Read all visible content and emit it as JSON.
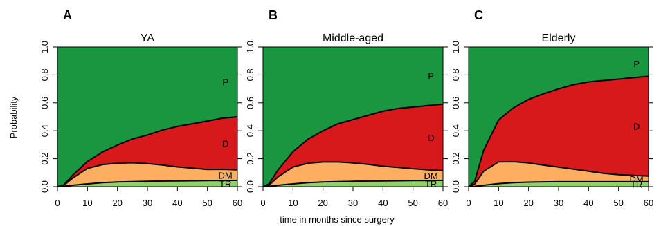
{
  "figure": {
    "ylabel": "Probability",
    "xlabel": "time in months since surgery"
  },
  "colors": {
    "TR": "#8fd16a",
    "DM": "#fdae61",
    "D": "#d7191c",
    "P": "#1a9641",
    "line": "#000000"
  },
  "chart_data": [
    {
      "type": "area",
      "panel": "A",
      "title": "YA",
      "xlim": [
        0,
        60
      ],
      "ylim": [
        0,
        1
      ],
      "x_ticks": [
        0,
        10,
        20,
        30,
        40,
        50,
        60
      ],
      "y_ticks": [
        "0.0",
        "0.2",
        "0.4",
        "0.6",
        "0.8",
        "1.0"
      ],
      "stacked": true,
      "x": [
        0,
        2,
        5,
        10,
        15,
        20,
        25,
        30,
        35,
        40,
        45,
        50,
        55,
        60
      ],
      "series": [
        {
          "name": "TR",
          "values": [
            0,
            0.002,
            0.01,
            0.02,
            0.028,
            0.033,
            0.036,
            0.038,
            0.04,
            0.041,
            0.042,
            0.043,
            0.044,
            0.045
          ]
        },
        {
          "name": "DM",
          "values": [
            0,
            0.005,
            0.05,
            0.11,
            0.13,
            0.135,
            0.135,
            0.127,
            0.115,
            0.1,
            0.09,
            0.08,
            0.08,
            0.075
          ]
        },
        {
          "name": "D",
          "values": [
            0,
            0.003,
            0.02,
            0.05,
            0.09,
            0.13,
            0.17,
            0.205,
            0.25,
            0.29,
            0.318,
            0.347,
            0.366,
            0.38
          ]
        },
        {
          "name": "P",
          "values": [
            1,
            0.99,
            0.92,
            0.82,
            0.752,
            0.702,
            0.659,
            0.63,
            0.595,
            0.569,
            0.55,
            0.53,
            0.51,
            0.5
          ]
        }
      ],
      "labels": [
        "TR",
        "DM",
        "D",
        "P"
      ]
    },
    {
      "type": "area",
      "panel": "B",
      "title": "Middle-aged",
      "xlim": [
        0,
        60
      ],
      "ylim": [
        0,
        1
      ],
      "x_ticks": [
        0,
        10,
        20,
        30,
        40,
        50,
        60
      ],
      "y_ticks": [
        "0.0",
        "0.2",
        "0.4",
        "0.6",
        "0.8",
        "1.0"
      ],
      "stacked": true,
      "x": [
        0,
        2,
        5,
        10,
        15,
        20,
        25,
        30,
        35,
        40,
        45,
        50,
        55,
        60
      ],
      "series": [
        {
          "name": "TR",
          "values": [
            0,
            0.002,
            0.01,
            0.02,
            0.028,
            0.033,
            0.036,
            0.038,
            0.04,
            0.041,
            0.042,
            0.043,
            0.044,
            0.045
          ]
        },
        {
          "name": "DM",
          "values": [
            0,
            0.008,
            0.06,
            0.12,
            0.14,
            0.143,
            0.14,
            0.132,
            0.12,
            0.105,
            0.095,
            0.085,
            0.076,
            0.07
          ]
        },
        {
          "name": "D",
          "values": [
            0,
            0.01,
            0.05,
            0.11,
            0.172,
            0.224,
            0.274,
            0.31,
            0.35,
            0.394,
            0.423,
            0.442,
            0.46,
            0.475
          ]
        },
        {
          "name": "P",
          "values": [
            1,
            0.98,
            0.88,
            0.75,
            0.66,
            0.6,
            0.55,
            0.52,
            0.49,
            0.46,
            0.44,
            0.43,
            0.42,
            0.41
          ]
        }
      ],
      "labels": [
        "TR",
        "DM",
        "D",
        "P"
      ]
    },
    {
      "type": "area",
      "panel": "C",
      "title": "Elderly",
      "xlim": [
        0,
        60
      ],
      "ylim": [
        0,
        1
      ],
      "x_ticks": [
        0,
        10,
        20,
        30,
        40,
        50,
        60
      ],
      "y_ticks": [
        "0.0",
        "0.2",
        "0.4",
        "0.6",
        "0.8",
        "1.0"
      ],
      "stacked": true,
      "x": [
        0,
        2,
        5,
        10,
        15,
        20,
        25,
        30,
        35,
        40,
        45,
        50,
        55,
        60
      ],
      "series": [
        {
          "name": "TR",
          "values": [
            0,
            0.002,
            0.01,
            0.022,
            0.028,
            0.032,
            0.034,
            0.035,
            0.035,
            0.035,
            0.035,
            0.035,
            0.035,
            0.035
          ]
        },
        {
          "name": "DM",
          "values": [
            0,
            0.015,
            0.1,
            0.155,
            0.15,
            0.138,
            0.12,
            0.105,
            0.09,
            0.075,
            0.06,
            0.05,
            0.045,
            0.04
          ]
        },
        {
          "name": "D",
          "values": [
            0,
            0.02,
            0.15,
            0.3,
            0.387,
            0.455,
            0.511,
            0.56,
            0.605,
            0.64,
            0.665,
            0.685,
            0.7,
            0.715
          ]
        },
        {
          "name": "P",
          "values": [
            1,
            0.963,
            0.74,
            0.523,
            0.435,
            0.375,
            0.335,
            0.3,
            0.27,
            0.25,
            0.24,
            0.23,
            0.22,
            0.21
          ]
        }
      ],
      "labels": [
        "TR",
        "DM",
        "D",
        "P"
      ]
    }
  ]
}
